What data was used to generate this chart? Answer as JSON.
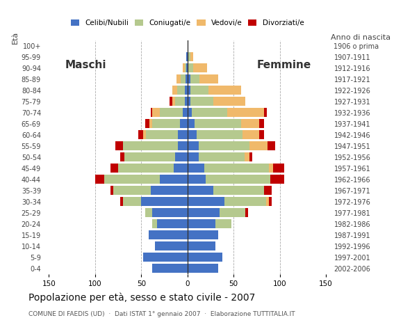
{
  "age_groups": [
    "0-4",
    "5-9",
    "10-14",
    "15-19",
    "20-24",
    "25-29",
    "30-34",
    "35-39",
    "40-44",
    "45-49",
    "50-54",
    "55-59",
    "60-64",
    "65-69",
    "70-74",
    "75-79",
    "80-84",
    "85-89",
    "90-94",
    "95-99",
    "100+"
  ],
  "birth_years": [
    "2002-2006",
    "1997-2001",
    "1992-1996",
    "1987-1991",
    "1982-1986",
    "1977-1981",
    "1972-1976",
    "1967-1971",
    "1962-1966",
    "1957-1961",
    "1952-1956",
    "1947-1951",
    "1942-1946",
    "1937-1941",
    "1932-1936",
    "1927-1931",
    "1922-1926",
    "1917-1921",
    "1912-1916",
    "1907-1911",
    "1906 o prima"
  ],
  "colors": {
    "celibe": "#4472c4",
    "coniugato": "#b5c98e",
    "vedovo": "#f0b96b",
    "divorziato": "#c00000"
  },
  "male": {
    "celibe": [
      38,
      48,
      35,
      42,
      33,
      38,
      50,
      40,
      30,
      15,
      13,
      10,
      10,
      8,
      5,
      3,
      3,
      2,
      1,
      1,
      0
    ],
    "coniugato": [
      0,
      0,
      0,
      0,
      5,
      8,
      20,
      40,
      60,
      60,
      55,
      60,
      35,
      30,
      25,
      10,
      8,
      5,
      2,
      0,
      0
    ],
    "vedovo": [
      0,
      0,
      0,
      0,
      0,
      0,
      0,
      0,
      0,
      0,
      0,
      0,
      3,
      3,
      8,
      3,
      5,
      5,
      2,
      0,
      0
    ],
    "divorziato": [
      0,
      0,
      0,
      0,
      0,
      0,
      3,
      3,
      10,
      8,
      5,
      8,
      5,
      5,
      2,
      3,
      0,
      0,
      0,
      0,
      0
    ]
  },
  "female": {
    "celibe": [
      33,
      38,
      30,
      33,
      30,
      35,
      40,
      28,
      20,
      18,
      12,
      12,
      10,
      8,
      5,
      3,
      3,
      3,
      1,
      1,
      0
    ],
    "coniugato": [
      0,
      0,
      0,
      0,
      18,
      28,
      45,
      55,
      70,
      70,
      50,
      55,
      50,
      50,
      38,
      25,
      20,
      10,
      5,
      2,
      0
    ],
    "vedovo": [
      0,
      0,
      0,
      0,
      0,
      0,
      3,
      0,
      0,
      5,
      5,
      20,
      18,
      20,
      40,
      35,
      35,
      20,
      15,
      3,
      1
    ],
    "divorziato": [
      0,
      0,
      0,
      0,
      0,
      3,
      3,
      8,
      15,
      12,
      3,
      8,
      5,
      5,
      3,
      0,
      0,
      0,
      0,
      0,
      0
    ]
  },
  "xlim": 155,
  "title": "Popolazione per età, sesso e stato civile - 2007",
  "subtitle": "COMUNE DI FAEDIS (UD)  ·  Dati ISTAT 1° gennaio 2007  ·  Elaborazione TUTTITALIA.IT",
  "xlabel_left": "Maschi",
  "xlabel_right": "Femmine",
  "ylabel_left": "Età",
  "ylabel_right": "Anno di nascita",
  "background_color": "#ffffff",
  "grid_color": "#aaaaaa",
  "legend_labels": [
    "Celibi/Nubili",
    "Coniugati/e",
    "Vedovi/e",
    "Divorziati/e"
  ]
}
